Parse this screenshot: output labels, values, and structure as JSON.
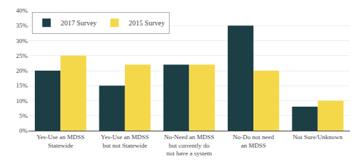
{
  "chart_data": {
    "type": "bar",
    "categories": [
      "Yes-Use an MDSS\nStatewide",
      "Yes-Use an MDSS\nbut not Statewide",
      "No-Need an MDSS\nbut currently do\nnot have a system",
      "No-Do not need\nan MDSS",
      "Not Sure/Unknown"
    ],
    "series": [
      {
        "name": "2017 Survey",
        "color": "#1c3f45",
        "values": [
          20,
          15,
          22,
          35,
          8
        ]
      },
      {
        "name": "2015 Survey",
        "color": "#f5d84a",
        "values": [
          25,
          22,
          22,
          20,
          10
        ]
      }
    ],
    "ylim": [
      0,
      40
    ],
    "yticks": [
      {
        "value": 0,
        "label": "0%"
      },
      {
        "value": 5,
        "label": "5%"
      },
      {
        "value": 10,
        "label": "10%"
      },
      {
        "value": 15,
        "label": "15%"
      },
      {
        "value": 20,
        "label": "20%"
      },
      {
        "value": 25,
        "label": "25%"
      },
      {
        "value": 30,
        "label": "30%"
      },
      {
        "value": 35,
        "label": "35%"
      },
      {
        "value": 40,
        "label": "40%"
      }
    ],
    "grid": true,
    "legend": "upper left"
  }
}
